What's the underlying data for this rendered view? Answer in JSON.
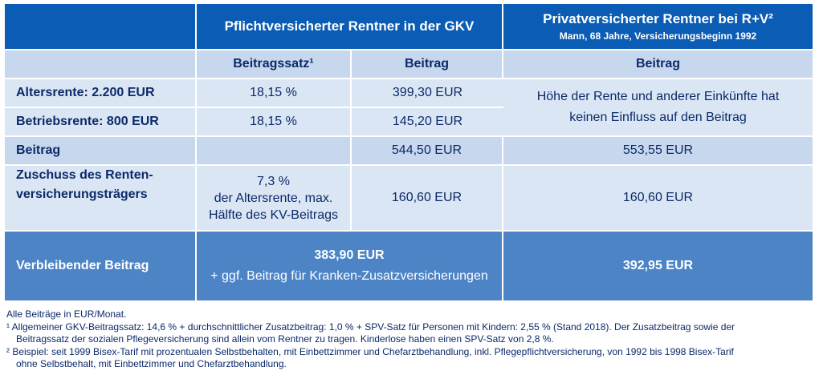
{
  "header": {
    "gkv_title": "Pflichtversicherter Rentner in der GKV",
    "private_title": "Privatversicherter Rentner bei R+V²",
    "private_subtitle": "Mann, 68 Jahre, Versicherungsbeginn 1992"
  },
  "subheader": {
    "beitragssatz": "Beitragssatz¹",
    "beitrag_gkv": "Beitrag",
    "beitrag_private": "Beitrag"
  },
  "rows": {
    "altersrente": {
      "label": "Altersrente: 2.200 EUR",
      "satz": "18,15 %",
      "beitrag": "399,30 EUR"
    },
    "betriebsrente": {
      "label": "Betriebsrente: 800 EUR",
      "satz": "18,15 %",
      "beitrag": "145,20 EUR"
    },
    "private_note": {
      "line1": "Höhe der Rente und anderer Einkünfte hat",
      "line2": "keinen Einfluss auf den Beitrag"
    },
    "beitrag": {
      "label": "Beitrag",
      "gkv": "544,50 EUR",
      "private": "553,55 EUR"
    },
    "zuschuss": {
      "label_line1": "Zuschuss des Renten-",
      "label_line2": "versicherungsträgers",
      "satz_line1": "7,3 %",
      "satz_line2": "der Altersrente, max.",
      "satz_line3": "Hälfte des KV-Beitrags",
      "gkv": "160,60 EUR",
      "private": "160,60 EUR"
    },
    "verbleibend": {
      "label": "Verbleibender Beitrag",
      "gkv": "383,90 EUR",
      "gkv_note": "+ ggf. Beitrag für Kranken-Zusatzversicherungen",
      "private": "392,95 EUR"
    }
  },
  "footnotes": {
    "general": "Alle Beiträge in EUR/Monat.",
    "note1_line1": "¹ Allgemeiner GKV-Beitragssatz: 14,6 % + durchschnittlicher Zusatzbeitrag: 1,0 % + SPV-Satz für Personen mit Kindern: 2,55 % (Stand 2018). Der Zusatzbeitrag sowie der",
    "note1_line2": "Beitragssatz der sozialen Pflegeversicherung sind allein vom Rentner zu tragen. Kinderlose haben einen SPV-Satz von 2,8 %.",
    "note2_line1": "² Beispiel: seit 1999 Bisex-Tarif mit prozentualen Selbstbehalten, mit Einbettzimmer und Chefarztbehandlung, inkl. Pflegepflichtversicherung, von 1992 bis 1998 Bisex-Tarif",
    "note2_line2": "ohne Selbstbehalt, mit Einbettzimmer und Chefarztbehandlung."
  }
}
